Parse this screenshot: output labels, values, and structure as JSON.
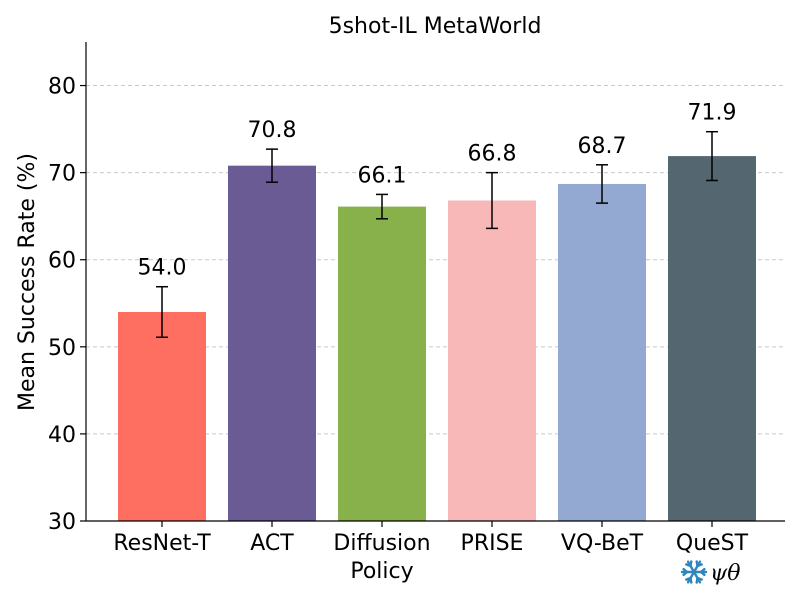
{
  "chart_data": {
    "type": "bar",
    "title": "5shot-IL MetaWorld",
    "xlabel": "",
    "ylabel": "Mean Success Rate (%)",
    "ylim": [
      30,
      85
    ],
    "yticks": [
      30,
      40,
      50,
      60,
      70,
      80
    ],
    "grid": "y-dashed",
    "categories": [
      [
        "ResNet-T"
      ],
      [
        "ACT"
      ],
      [
        "Diffusion",
        "Policy"
      ],
      [
        "PRISE"
      ],
      [
        "VQ-BeT"
      ],
      [
        "QueST"
      ]
    ],
    "values": [
      54.0,
      70.8,
      66.1,
      66.8,
      68.7,
      71.9
    ],
    "value_labels": [
      "54.0",
      "70.8",
      "66.1",
      "66.8",
      "68.7",
      "71.9"
    ],
    "errors": [
      [
        51.1,
        56.9
      ],
      [
        68.9,
        72.7
      ],
      [
        64.7,
        67.5
      ],
      [
        63.6,
        70.0
      ],
      [
        66.5,
        70.9
      ],
      [
        69.1,
        74.7
      ]
    ],
    "colors": [
      "#ff6f61",
      "#6b5b95",
      "#88b04b",
      "#f7b8b7",
      "#93a9d2",
      "#546670"
    ],
    "annotation": {
      "category_index": 5,
      "icon": "snowflake-icon",
      "icon_color": "#2e86c1",
      "text": "ψθ"
    }
  }
}
